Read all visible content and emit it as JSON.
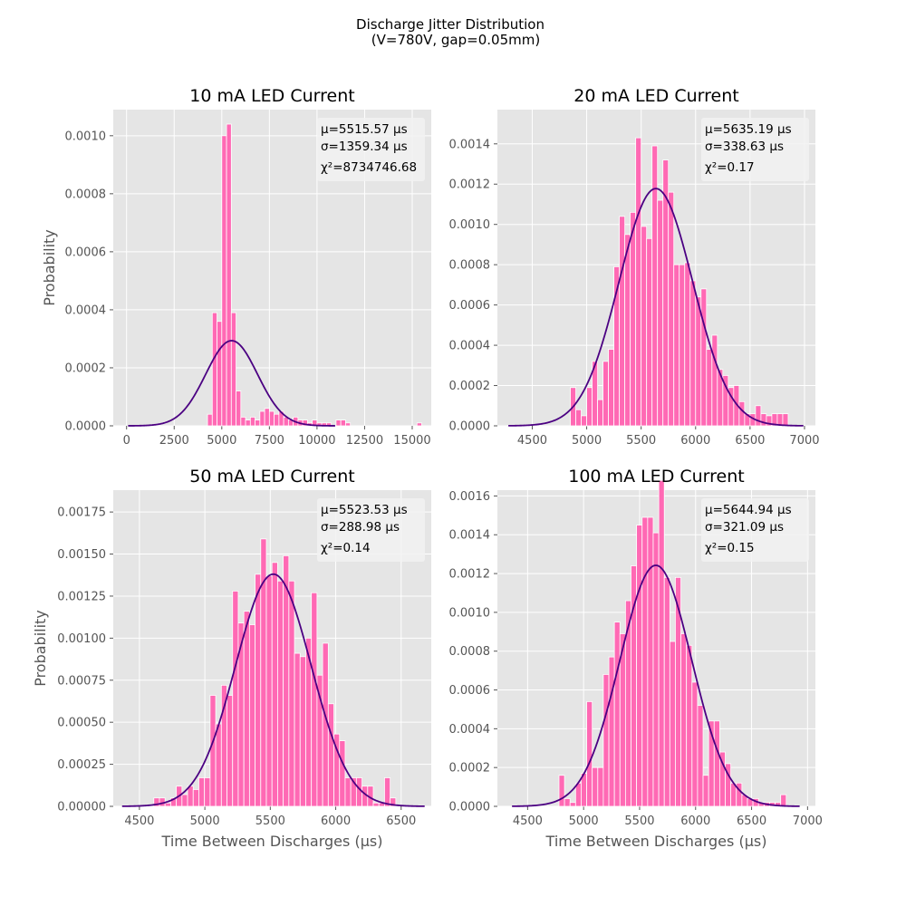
{
  "figure": {
    "title_line1": "Discharge Jitter Distribution",
    "title_line2": "(V=780V, gap=0.05mm)"
  },
  "style": {
    "panel_bg": "#e5e5e5",
    "grid": "#ffffff",
    "bar_color": "#ff69b4",
    "fit_color": "#4b0082",
    "stat_box": "#f2f2f2"
  },
  "chart_data": [
    {
      "type": "bar",
      "title": "10 mA LED Current",
      "ylabel": "Probability",
      "xlabel": "",
      "xlim": [
        -700,
        16000
      ],
      "ylim": [
        0,
        0.00109
      ],
      "xticks": [
        0,
        2500,
        5000,
        7500,
        10000,
        12500,
        15000
      ],
      "xtick_labels": [
        "0",
        "2500",
        "5000",
        "7500",
        "10000",
        "12500",
        "15000"
      ],
      "yticks": [
        0,
        0.0002,
        0.0004,
        0.0006,
        0.0008,
        0.001
      ],
      "ytick_labels": [
        "0.0000",
        "0.0002",
        "0.0004",
        "0.0006",
        "0.0008",
        "0.0010"
      ],
      "bin_width": 250,
      "bin_left": [
        4250,
        4500,
        4750,
        5000,
        5250,
        5500,
        5750,
        6000,
        6250,
        6500,
        6750,
        7000,
        7250,
        7500,
        7750,
        8000,
        8250,
        8500,
        8750,
        9000,
        9250,
        9500,
        9750,
        10000,
        10250,
        10500,
        10750,
        11000,
        11250,
        11500,
        15250
      ],
      "values": [
        4e-05,
        0.00039,
        0.00036,
        0.001,
        0.00104,
        0.00039,
        0.00012,
        3e-05,
        2e-05,
        3e-05,
        2e-05,
        5e-05,
        6e-05,
        5e-05,
        4e-05,
        5e-05,
        3e-05,
        2e-05,
        3e-05,
        2e-05,
        2e-05,
        1e-05,
        2e-05,
        1e-05,
        1e-05,
        1e-05,
        0.0,
        2e-05,
        2e-05,
        1e-05,
        1e-05
      ],
      "fit": {
        "mu": 5515.57,
        "sigma": 1359.34
      },
      "stats": {
        "mu_label": "μ=5515.57 μs",
        "sigma_label": "σ=1359.34 μs",
        "chi_label": "χ²=8734746.68"
      }
    },
    {
      "type": "bar",
      "title": "20 mA LED Current",
      "ylabel": "",
      "xlabel": "",
      "xlim": [
        4180,
        7100
      ],
      "ylim": [
        0,
        0.00157
      ],
      "xticks": [
        4500,
        5000,
        5500,
        6000,
        6500,
        7000
      ],
      "xtick_labels": [
        "4500",
        "5000",
        "5500",
        "6000",
        "6500",
        "7000"
      ],
      "yticks": [
        0,
        0.0002,
        0.0004,
        0.0006,
        0.0008,
        0.001,
        0.0012,
        0.0014
      ],
      "ytick_labels": [
        "0.0000",
        "0.0002",
        "0.0004",
        "0.0006",
        "0.0008",
        "0.0010",
        "0.0012",
        "0.0014"
      ],
      "bin_width": 50,
      "bin_left": [
        4850,
        4900,
        4950,
        5000,
        5050,
        5100,
        5150,
        5200,
        5250,
        5300,
        5350,
        5400,
        5450,
        5500,
        5550,
        5600,
        5650,
        5700,
        5750,
        5800,
        5850,
        5900,
        5950,
        6000,
        6050,
        6100,
        6150,
        6200,
        6250,
        6300,
        6350,
        6400,
        6450,
        6500,
        6550,
        6600,
        6650,
        6700,
        6750,
        6800
      ],
      "values": [
        0.00019,
        8e-05,
        5e-05,
        0.00019,
        0.00032,
        0.00013,
        0.00032,
        0.00038,
        0.00079,
        0.00104,
        0.00095,
        0.00106,
        0.00143,
        0.00099,
        0.00093,
        0.00139,
        0.00112,
        0.00132,
        0.00116,
        0.0008,
        0.0008,
        0.00081,
        0.00072,
        0.00064,
        0.00068,
        0.00038,
        0.00045,
        0.00028,
        0.00025,
        0.00019,
        0.0002,
        0.00012,
        6e-05,
        6e-05,
        0.0001,
        6e-05,
        5e-05,
        6e-05,
        6e-05,
        6e-05
      ],
      "fit": {
        "mu": 5635.19,
        "sigma": 338.63
      },
      "stats": {
        "mu_label": "μ=5635.19 μs",
        "sigma_label": "σ=338.63 μs",
        "chi_label": "χ²=0.17"
      }
    },
    {
      "type": "bar",
      "title": "50 mA LED Current",
      "ylabel": "Probability",
      "xlabel": "Time Between Discharges (μs)",
      "xlim": [
        4300,
        6730
      ],
      "ylim": [
        0,
        0.00188
      ],
      "xticks": [
        4500,
        5000,
        5500,
        6000,
        6500
      ],
      "xtick_labels": [
        "4500",
        "5000",
        "5500",
        "6000",
        "6500"
      ],
      "yticks": [
        0,
        0.00025,
        0.0005,
        0.00075,
        0.001,
        0.00125,
        0.0015,
        0.00175
      ],
      "ytick_labels": [
        "0.00000",
        "0.00025",
        "0.00050",
        "0.00075",
        "0.00100",
        "0.00125",
        "0.00150",
        "0.00175"
      ],
      "bin_width": 43,
      "bin_left": [
        4610,
        4653,
        4696,
        4739,
        4782,
        4825,
        4868,
        4911,
        4954,
        4997,
        5040,
        5083,
        5126,
        5169,
        5212,
        5255,
        5298,
        5341,
        5384,
        5427,
        5470,
        5513,
        5556,
        5599,
        5642,
        5685,
        5728,
        5771,
        5814,
        5857,
        5900,
        5943,
        5986,
        6029,
        6072,
        6115,
        6158,
        6201,
        6244,
        6287,
        6330,
        6373,
        6416
      ],
      "values": [
        5e-05,
        5e-05,
        2e-05,
        5e-05,
        0.00012,
        7e-05,
        0.00012,
        0.0001,
        0.00017,
        0.00017,
        0.00066,
        0.00049,
        0.00072,
        0.00066,
        0.00128,
        0.00109,
        0.00116,
        0.00108,
        0.00138,
        0.00159,
        0.00137,
        0.00145,
        0.00134,
        0.00149,
        0.00134,
        0.00091,
        0.00089,
        0.001,
        0.00127,
        0.00078,
        0.00097,
        0.00061,
        0.00043,
        0.00039,
        0.00017,
        0.00017,
        0.00017,
        0.00012,
        0.00012,
        2e-05,
        2e-05,
        0.00017,
        5e-05
      ],
      "fit": {
        "mu": 5523.53,
        "sigma": 288.98
      },
      "stats": {
        "mu_label": "μ=5523.53 μs",
        "sigma_label": "σ=288.98 μs",
        "chi_label": "χ²=0.14"
      }
    },
    {
      "type": "bar",
      "title": "100 mA LED Current",
      "ylabel": "",
      "xlabel": "Time Between Discharges (μs)",
      "xlim": [
        4230,
        7070
      ],
      "ylim": [
        0,
        0.00163
      ],
      "xticks": [
        4500,
        5000,
        5500,
        6000,
        6500,
        7000
      ],
      "xtick_labels": [
        "4500",
        "5000",
        "5500",
        "6000",
        "6500",
        "7000"
      ],
      "yticks": [
        0,
        0.0002,
        0.0004,
        0.0006,
        0.0008,
        0.001,
        0.0012,
        0.0014,
        0.0016
      ],
      "ytick_labels": [
        "0.0000",
        "0.0002",
        "0.0004",
        "0.0006",
        "0.0008",
        "0.0010",
        "0.0012",
        "0.0014",
        "0.0016"
      ],
      "bin_width": 49.5,
      "bin_left": [
        4780,
        4829.5,
        4879,
        4928.5,
        4978,
        5027.5,
        5077,
        5126.5,
        5176,
        5225.5,
        5275,
        5324.5,
        5374,
        5423.5,
        5473,
        5522.5,
        5572,
        5621.5,
        5671,
        5720.5,
        5770,
        5819.5,
        5869,
        5918.5,
        5968,
        6017.5,
        6067,
        6116.5,
        6166,
        6215.5,
        6265,
        6314.5,
        6364,
        6413.5,
        6463,
        6512.5,
        6562,
        6611.5,
        6661,
        6710.5,
        6760
      ],
      "values": [
        0.00016,
        4e-05,
        2e-05,
        0.00012,
        0.00017,
        0.00054,
        0.0002,
        0.0002,
        0.00068,
        0.00077,
        0.00095,
        0.00089,
        0.00106,
        0.00124,
        0.00145,
        0.00149,
        0.00149,
        0.00141,
        0.00168,
        0.00118,
        0.00085,
        0.00118,
        0.00089,
        0.00083,
        0.00064,
        0.00052,
        0.00016,
        0.00044,
        0.00044,
        0.00028,
        0.00022,
        0.00012,
        0.00012,
        6e-05,
        4e-05,
        4e-05,
        2e-05,
        2e-05,
        2e-05,
        2e-05,
        6e-05
      ],
      "fit": {
        "mu": 5644.94,
        "sigma": 321.09
      },
      "stats": {
        "mu_label": "μ=5644.94 μs",
        "sigma_label": "σ=321.09 μs",
        "chi_label": "χ²=0.15"
      }
    }
  ]
}
